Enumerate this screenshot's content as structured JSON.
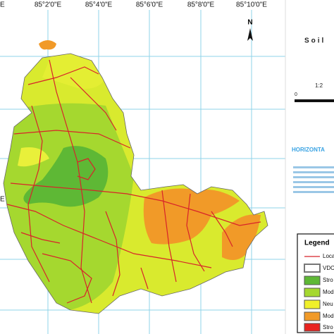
{
  "map": {
    "lon_labels": [
      "85°2'0\"E",
      "85°4'0\"E",
      "85°6'0\"E",
      "85°8'0\"E",
      "85°10'0\"E"
    ],
    "edge_labels": [
      "E",
      "E"
    ],
    "north": "N",
    "title": "Soil",
    "scale": "1:2",
    "scale_zero": "0",
    "projection_title": "HORIZONTA",
    "legend": {
      "title": "Legend",
      "items": [
        "Loca",
        "VDC",
        "Stro",
        "Mod",
        "Neu",
        "Mod",
        "Stro"
      ]
    }
  }
}
